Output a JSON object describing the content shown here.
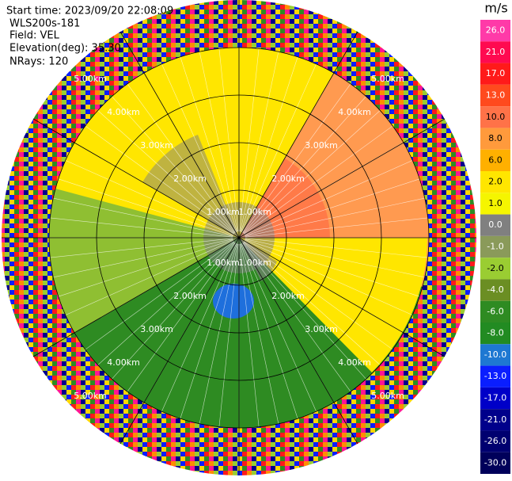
{
  "header": {
    "start_time": "Start time: 2023/09/20 22:08:09",
    "instrument": "WLS200s-181",
    "field": "Field: VEL",
    "elevation": "Elevation(deg): 35.30",
    "nrays": "NRays: 120"
  },
  "range_labels": [
    "1.00km",
    "2.00km",
    "3.00km",
    "4.00km",
    "5.00km"
  ],
  "colorbar": {
    "unit": "m/s",
    "ticks": [
      {
        "value": 26,
        "label": "26.0"
      },
      {
        "value": 21,
        "label": "21.0"
      },
      {
        "value": 17,
        "label": "17.0"
      },
      {
        "value": 13,
        "label": "13.0"
      },
      {
        "value": 10,
        "label": "10.0"
      },
      {
        "value": 8,
        "label": "8.0"
      },
      {
        "value": 6,
        "label": "6.0"
      },
      {
        "value": 2,
        "label": "2.0"
      },
      {
        "value": 1,
        "label": "1.0"
      },
      {
        "value": 0,
        "label": "0.0"
      },
      {
        "value": -1,
        "label": "-1.0"
      },
      {
        "value": -2,
        "label": "-2.0"
      },
      {
        "value": -4,
        "label": "-4.0"
      },
      {
        "value": -6,
        "label": "-6.0"
      },
      {
        "value": -8,
        "label": "-8.0"
      },
      {
        "value": -10,
        "label": "-10.0"
      },
      {
        "value": -13,
        "label": "-13.0"
      },
      {
        "value": -17,
        "label": "-17.0"
      },
      {
        "value": -21,
        "label": "-21.0"
      },
      {
        "value": -26,
        "label": "-26.0"
      },
      {
        "value": -30,
        "label": "-30.0"
      }
    ],
    "colors": [
      "#ff3aa8",
      "#ff0a50",
      "#ff1a1a",
      "#ff4a1e",
      "#ff7248",
      "#ff9a3c",
      "#ffb000",
      "#ffe600",
      "#f5f500",
      "#808080",
      "#8a9a5a",
      "#9acd32",
      "#6b8e23",
      "#2e8b22",
      "#228b22",
      "#1e78d2",
      "#0a1eff",
      "#0000c8",
      "#00008b",
      "#000070",
      "#00005a"
    ]
  }
}
